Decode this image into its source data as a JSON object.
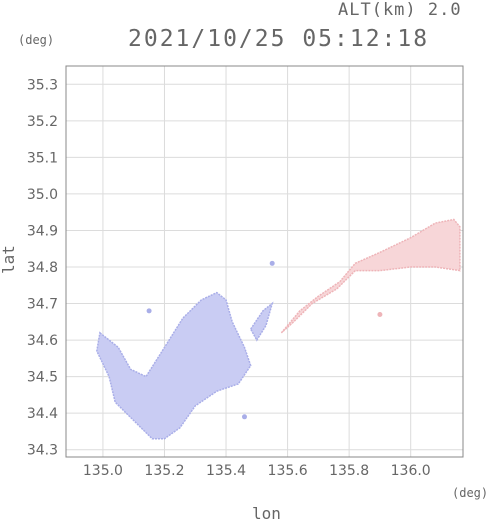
{
  "header": {
    "altitude_label": "ALT(km) 2.0",
    "timestamp": "2021/10/25 05:12:18"
  },
  "axes": {
    "x_unit": "(deg)",
    "y_unit": "(deg)",
    "x_label": "lon",
    "y_label": "lat"
  },
  "chart_data": {
    "type": "heatmap",
    "xlabel": "lon",
    "ylabel": "lat",
    "xlim": [
      134.88,
      136.17
    ],
    "ylim": [
      34.28,
      35.35
    ],
    "x_ticks": [
      135.0,
      135.2,
      135.4,
      135.6,
      135.8,
      136.0
    ],
    "x_tick_labels": [
      "135.0",
      "135.2",
      "135.4",
      "135.6",
      "135.8",
      "136.0"
    ],
    "y_ticks": [
      34.3,
      34.4,
      34.5,
      34.6,
      34.7,
      34.8,
      34.9,
      35.0,
      35.1,
      35.2,
      35.3
    ],
    "y_tick_labels": [
      "34.3",
      "34.4",
      "34.5",
      "34.6",
      "34.7",
      "34.8",
      "34.9",
      "35.0",
      "35.1",
      "35.2",
      "35.3"
    ],
    "grid": true,
    "colors": {
      "negative_region": "#c9ccf3",
      "negative_dark": "#a9aee8",
      "positive_region": "#f7d6d8",
      "positive_dark": "#eeb4b8",
      "grid": "#dcdcdc",
      "frame": "#888888"
    },
    "regions": [
      {
        "sign": "negative",
        "polygon": [
          [
            134.99,
            34.62
          ],
          [
            135.05,
            34.58
          ],
          [
            135.09,
            34.52
          ],
          [
            135.14,
            34.5
          ],
          [
            135.2,
            34.58
          ],
          [
            135.26,
            34.66
          ],
          [
            135.32,
            34.71
          ],
          [
            135.37,
            34.73
          ],
          [
            135.4,
            34.71
          ],
          [
            135.42,
            34.65
          ],
          [
            135.46,
            34.58
          ],
          [
            135.48,
            34.53
          ],
          [
            135.44,
            34.48
          ],
          [
            135.37,
            34.46
          ],
          [
            135.3,
            34.42
          ],
          [
            135.25,
            34.36
          ],
          [
            135.2,
            34.33
          ],
          [
            135.16,
            34.33
          ],
          [
            135.1,
            34.38
          ],
          [
            135.04,
            34.43
          ],
          [
            135.02,
            34.5
          ],
          [
            134.98,
            34.57
          ]
        ]
      },
      {
        "sign": "negative",
        "polygon": [
          [
            135.48,
            34.63
          ],
          [
            135.52,
            34.68
          ],
          [
            135.55,
            34.7
          ],
          [
            135.53,
            34.64
          ],
          [
            135.5,
            34.6
          ]
        ]
      },
      {
        "sign": "positive",
        "polygon": [
          [
            135.58,
            34.62
          ],
          [
            135.64,
            34.68
          ],
          [
            135.7,
            34.72
          ],
          [
            135.77,
            34.76
          ],
          [
            135.82,
            34.81
          ],
          [
            135.9,
            34.84
          ],
          [
            136.0,
            34.88
          ],
          [
            136.08,
            34.92
          ],
          [
            136.14,
            34.93
          ],
          [
            136.16,
            34.91
          ],
          [
            136.16,
            34.79
          ],
          [
            136.08,
            34.8
          ],
          [
            136.0,
            34.8
          ],
          [
            135.9,
            34.79
          ],
          [
            135.82,
            34.79
          ],
          [
            135.76,
            34.74
          ],
          [
            135.68,
            34.7
          ],
          [
            135.62,
            34.65
          ]
        ]
      }
    ],
    "specks": [
      {
        "sign": "negative",
        "lon": 135.55,
        "lat": 34.81
      },
      {
        "sign": "negative",
        "lon": 135.15,
        "lat": 34.68
      },
      {
        "sign": "positive",
        "lon": 135.9,
        "lat": 34.67
      },
      {
        "sign": "negative",
        "lon": 135.46,
        "lat": 34.39
      }
    ]
  }
}
